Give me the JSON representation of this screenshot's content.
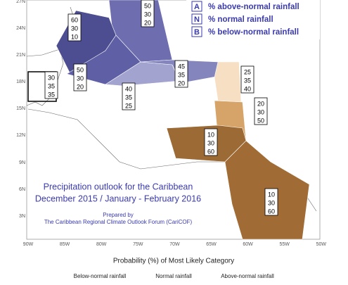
{
  "map": {
    "lat_labels": [
      "27N",
      "24N",
      "21N",
      "18N",
      "15N",
      "12N",
      "9N",
      "6N",
      "3N"
    ],
    "lon_labels": [
      "90W",
      "85W",
      "80W",
      "75W",
      "70W",
      "65W",
      "60W",
      "55W",
      "50W"
    ]
  },
  "legend": {
    "items": [
      {
        "key": "A",
        "label": "% above-normal rainfall"
      },
      {
        "key": "N",
        "label": "% normal rainfall"
      },
      {
        "key": "B",
        "label": "% below-normal rainfall"
      }
    ]
  },
  "title": {
    "line1": "Precipitation outlook for the Caribbean",
    "line2": "December 2015 / January - February 2016"
  },
  "credit": {
    "prepared": "Prepared by",
    "forum": "The Caribbean Regional Climate Outlook Forum (CariCOF)"
  },
  "regions": [
    {
      "probabilities": [
        50,
        30,
        20
      ]
    },
    {
      "probabilities": [
        60,
        30,
        10
      ]
    },
    {
      "probabilities": [
        50,
        30,
        20
      ]
    },
    {
      "probabilities": [
        30,
        35,
        35
      ]
    },
    {
      "probabilities": [
        40,
        35,
        25
      ]
    },
    {
      "probabilities": [
        45,
        35,
        20
      ]
    },
    {
      "probabilities": [
        25,
        35,
        40
      ]
    },
    {
      "probabilities": [
        20,
        30,
        50
      ]
    },
    {
      "probabilities": [
        10,
        30,
        60
      ]
    },
    {
      "probabilities": [
        10,
        30,
        60
      ]
    }
  ],
  "footer": {
    "title": "Probability (%) of Most Likely Category",
    "categories": [
      "Below-normal rainfall",
      "Normal rainfall",
      "Above-normal rainfall"
    ]
  }
}
